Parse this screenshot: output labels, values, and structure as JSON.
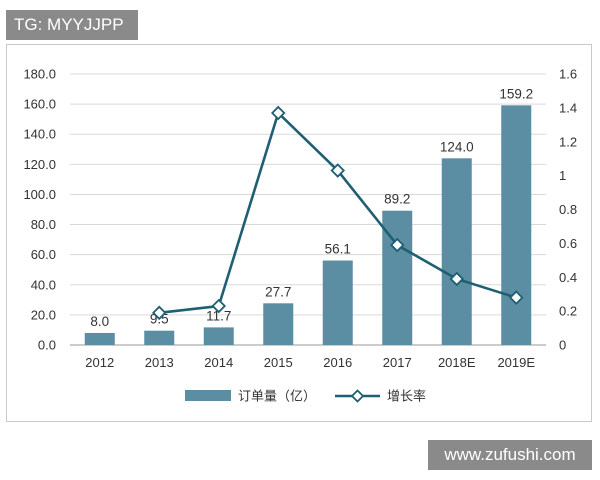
{
  "watermark_top": "TG: MYYJJPP",
  "watermark_bottom": "www.zufushi.com",
  "colors": {
    "bar": "#5b8ea3",
    "line": "#1f5f73",
    "marker_fill": "#ffffff",
    "grid": "#d9d9d9",
    "axis": "#999999"
  },
  "chart_data": {
    "type": "bar",
    "categories": [
      "2012",
      "2013",
      "2014",
      "2015",
      "2016",
      "2017",
      "2018E",
      "2019E"
    ],
    "series": [
      {
        "name": "订单量（亿）",
        "type": "bar",
        "axis": "left",
        "values": [
          8.0,
          9.5,
          11.7,
          27.7,
          56.1,
          89.2,
          124.0,
          159.2
        ],
        "labels": [
          "8.0",
          "9.5",
          "11.7",
          "27.7",
          "56.1",
          "89.2",
          "124.0",
          "159.2"
        ]
      },
      {
        "name": "增长率",
        "type": "line",
        "axis": "right",
        "values": [
          null,
          0.19,
          0.23,
          1.37,
          1.03,
          0.59,
          0.39,
          0.28
        ]
      }
    ],
    "y_left": {
      "ylim": [
        0,
        180
      ],
      "ticks": [
        "0.0",
        "20.0",
        "40.0",
        "60.0",
        "80.0",
        "100.0",
        "120.0",
        "140.0",
        "160.0",
        "180.0"
      ]
    },
    "y_right": {
      "ylim": [
        0,
        1.6
      ],
      "ticks": [
        "0",
        "0.2",
        "0.4",
        "0.6",
        "0.8",
        "1",
        "1.2",
        "1.4",
        "1.6"
      ]
    },
    "grid": true,
    "legend_position": "bottom"
  }
}
